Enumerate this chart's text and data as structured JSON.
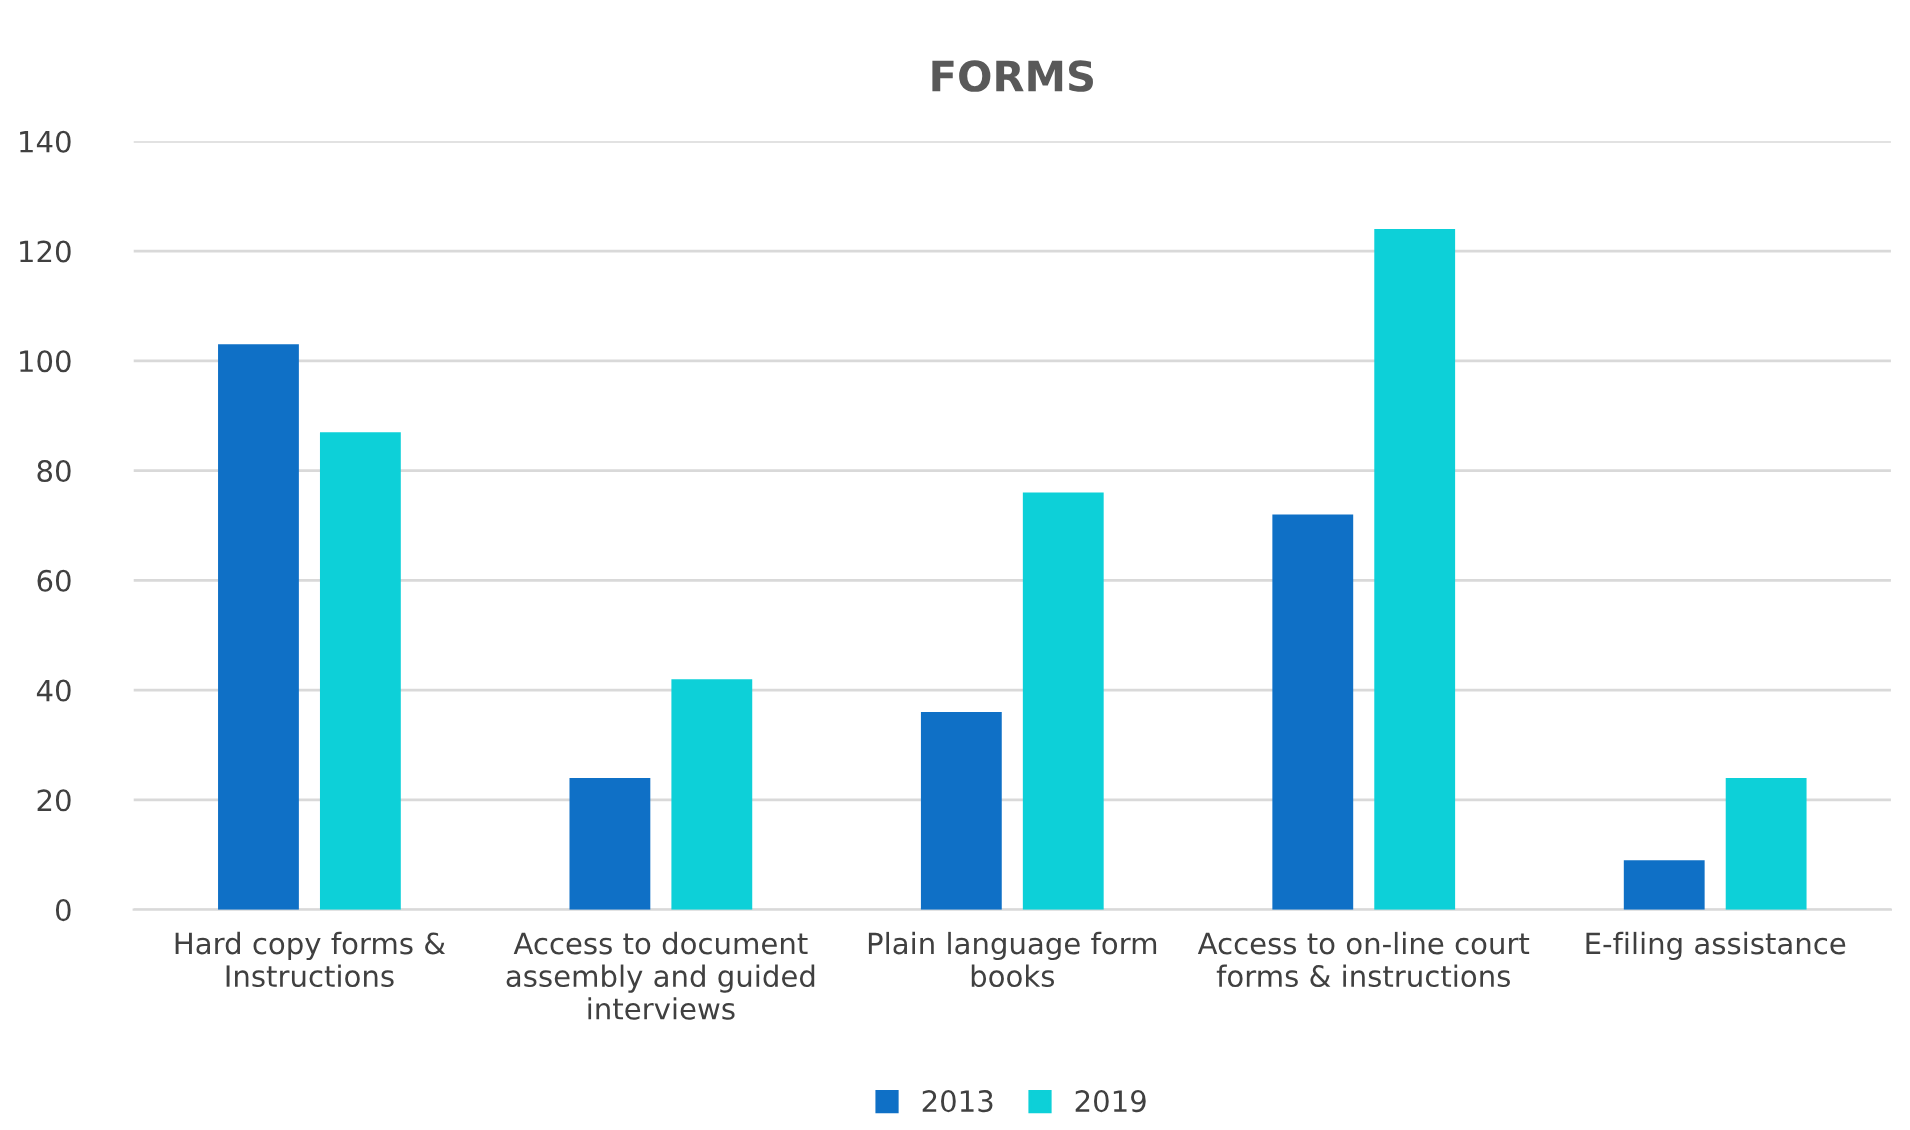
{
  "chart_data": {
    "type": "bar",
    "title": "FORMS",
    "categories": [
      "Hard copy forms &\nInstructions",
      "Access to document\nassembly and guided\ninterviews",
      "Plain language form\nbooks",
      "Access to on-line court\nforms & instructions",
      "E-filing assistance"
    ],
    "series": [
      {
        "name": "2013",
        "color": "#0f70c6",
        "values": [
          103,
          24,
          36,
          72,
          9
        ]
      },
      {
        "name": "2019",
        "color": "#0dd0d8",
        "values": [
          87,
          42,
          76,
          124,
          24
        ]
      }
    ],
    "ylim": [
      0,
      140
    ],
    "yticks": [
      0,
      20,
      40,
      60,
      80,
      100,
      120,
      140
    ],
    "grid": "y",
    "legend": "bottom"
  }
}
